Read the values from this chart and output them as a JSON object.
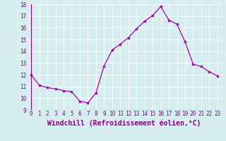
{
  "x": [
    0,
    1,
    2,
    3,
    4,
    5,
    6,
    7,
    8,
    9,
    10,
    11,
    12,
    13,
    14,
    15,
    16,
    17,
    18,
    19,
    20,
    21,
    22,
    23
  ],
  "y": [
    12.0,
    11.1,
    10.9,
    10.8,
    10.65,
    10.55,
    9.75,
    9.6,
    10.45,
    12.75,
    14.1,
    14.6,
    15.15,
    15.9,
    16.55,
    17.05,
    17.8,
    16.65,
    16.3,
    14.8,
    12.9,
    12.7,
    12.25,
    11.9
  ],
  "line_color": "#aa00aa",
  "marker": "*",
  "marker_size": 3,
  "bg_color": "#d6eef0",
  "grid_color": "#b0d8dc",
  "xlabel": "Windchill (Refroidissement éolien,°C)",
  "ylim": [
    9,
    18
  ],
  "xlim_min": -0.5,
  "xlim_max": 23.5,
  "yticks": [
    9,
    10,
    11,
    12,
    13,
    14,
    15,
    16,
    17,
    18
  ],
  "xticks": [
    0,
    1,
    2,
    3,
    4,
    5,
    6,
    7,
    8,
    9,
    10,
    11,
    12,
    13,
    14,
    15,
    16,
    17,
    18,
    19,
    20,
    21,
    22,
    23
  ],
  "tick_label_fontsize": 5.5,
  "xlabel_fontsize": 7,
  "label_color": "#880088"
}
